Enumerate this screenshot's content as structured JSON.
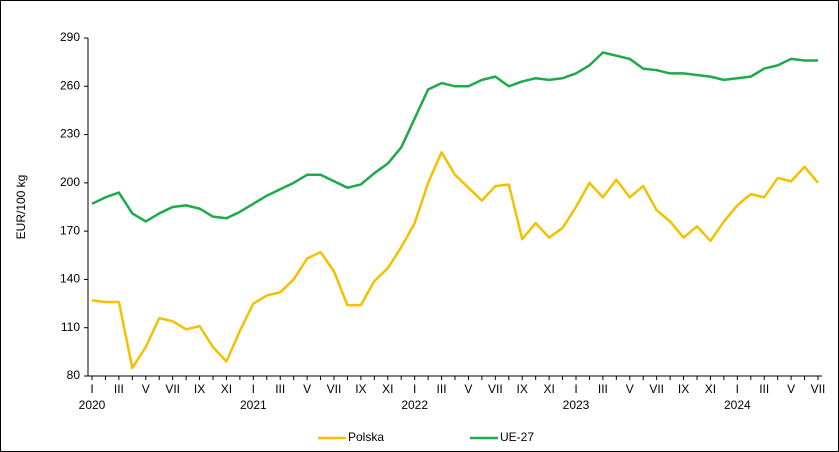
{
  "chart_data": {
    "type": "line",
    "y_label": "EUR/100 kg",
    "categories": [
      "I",
      null,
      "III",
      null,
      "V",
      null,
      "VII",
      null,
      "IX",
      null,
      "XI",
      null,
      "I",
      null,
      "III",
      null,
      "V",
      null,
      "VII",
      null,
      "IX",
      null,
      "XI",
      null,
      "I",
      null,
      "III",
      null,
      "V",
      null,
      "VII",
      null,
      "IX",
      null,
      "XI",
      null,
      "I",
      null,
      "III",
      null,
      "V",
      null,
      "VII",
      null,
      "IX",
      null,
      "XI",
      null,
      "I",
      null,
      "III",
      null,
      "V",
      null,
      "VII"
    ],
    "category_years": [
      "2020",
      null,
      null,
      null,
      null,
      null,
      null,
      null,
      null,
      null,
      null,
      null,
      "2021",
      null,
      null,
      null,
      null,
      null,
      null,
      null,
      null,
      null,
      null,
      null,
      "2022",
      null,
      null,
      null,
      null,
      null,
      null,
      null,
      null,
      null,
      null,
      null,
      "2023",
      null,
      null,
      null,
      null,
      null,
      null,
      null,
      null,
      null,
      null,
      null,
      "2024",
      null,
      null,
      null,
      null,
      null,
      null
    ],
    "series": [
      {
        "name": "Polska",
        "color": "#f5c000",
        "values": [
          127,
          126,
          126,
          85,
          98,
          116,
          114,
          109,
          111,
          98,
          89,
          108,
          125,
          130,
          132,
          140,
          153,
          157,
          145,
          124,
          124,
          139,
          147,
          160,
          175,
          200,
          219,
          205,
          197,
          189,
          198,
          199,
          165,
          175,
          166,
          172,
          185,
          200,
          191,
          202,
          191,
          198,
          183,
          176,
          166,
          173,
          164,
          176,
          186,
          193,
          191,
          203,
          201,
          210,
          200
        ]
      },
      {
        "name": "UE-27",
        "color": "#1faa4a",
        "values": [
          187,
          191,
          194,
          181,
          176,
          181,
          185,
          186,
          184,
          179,
          178,
          182,
          187,
          192,
          196,
          200,
          205,
          205,
          201,
          197,
          199,
          206,
          212,
          222,
          240,
          258,
          262,
          260,
          260,
          264,
          266,
          260,
          263,
          265,
          264,
          265,
          268,
          273,
          281,
          279,
          277,
          271,
          270,
          268,
          268,
          267,
          266,
          264,
          265,
          266,
          271,
          273,
          277,
          276,
          276
        ]
      }
    ],
    "ylim": [
      80,
      290
    ],
    "yticks": [
      80,
      110,
      140,
      170,
      200,
      230,
      260,
      290
    ]
  }
}
